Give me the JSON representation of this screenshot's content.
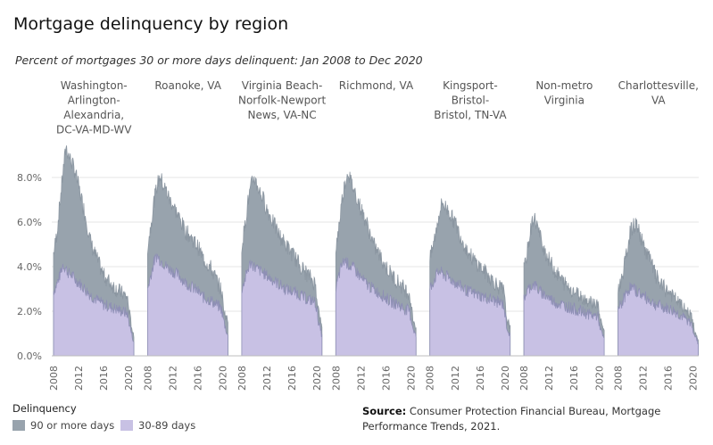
{
  "chart_data": {
    "type": "area",
    "title": "Mortgage delinquency by region",
    "subtitle": "Percent of mortgages 30 or more days delinquent: Jan 2008 to Dec 2020",
    "y_ticks": [
      "0.0%",
      "2.0%",
      "4.0%",
      "6.0%",
      "8.0%"
    ],
    "ylim": [
      0,
      9.6
    ],
    "x_ticks": [
      "2008",
      "2012",
      "2016",
      "2020"
    ],
    "xlim": [
      2008,
      2020.9
    ],
    "stacked": true,
    "series_colors": {
      "90 or more days": "#98a3ad",
      "30-89 days": "#c8c1e4"
    },
    "panels": [
      {
        "region": "Washington-Arlington-Alexandria, DC-VA-MD-WV",
        "t": [
          2008.0,
          2008.5,
          2009.0,
          2009.5,
          2010.0,
          2010.4,
          2011.0,
          2011.5,
          2012.0,
          2013.0,
          2014.0,
          2015.0,
          2016.0,
          2017.0,
          2018.0,
          2019.0,
          2019.8,
          2020.3,
          2020.9
        ],
        "early": [
          2.9,
          3.2,
          3.6,
          4.1,
          3.9,
          3.7,
          3.6,
          3.4,
          3.3,
          3.0,
          2.7,
          2.5,
          2.3,
          2.2,
          2.1,
          2.0,
          1.9,
          1.2,
          0.5
        ],
        "total": [
          4.6,
          5.4,
          6.8,
          8.2,
          9.4,
          9.0,
          8.6,
          8.2,
          7.6,
          6.4,
          5.0,
          4.3,
          3.6,
          3.3,
          3.0,
          2.8,
          2.6,
          1.6,
          0.7
        ]
      },
      {
        "region": "Roanoke, VA",
        "t": [
          2008.0,
          2008.5,
          2009.0,
          2009.5,
          2010.0,
          2010.4,
          2011.0,
          2011.5,
          2012.0,
          2013.0,
          2014.0,
          2015.0,
          2016.0,
          2017.0,
          2018.0,
          2019.0,
          2019.8,
          2020.3,
          2020.9
        ],
        "early": [
          3.0,
          3.6,
          4.2,
          4.5,
          4.3,
          4.2,
          4.0,
          3.9,
          3.8,
          3.6,
          3.3,
          3.1,
          2.9,
          2.6,
          2.5,
          2.3,
          2.1,
          1.4,
          0.8
        ],
        "total": [
          4.9,
          5.8,
          6.9,
          7.6,
          8.1,
          7.7,
          7.4,
          7.0,
          6.8,
          6.2,
          5.6,
          5.3,
          4.9,
          4.3,
          4.0,
          3.4,
          2.9,
          1.9,
          1.5
        ]
      },
      {
        "region": "Virginia Beach-Norfolk-Newport News, VA-NC",
        "t": [
          2008.0,
          2008.5,
          2009.0,
          2009.5,
          2010.0,
          2010.4,
          2011.0,
          2011.5,
          2012.0,
          2013.0,
          2014.0,
          2015.0,
          2016.0,
          2017.0,
          2018.0,
          2019.0,
          2019.8,
          2020.3,
          2020.9
        ],
        "early": [
          3.0,
          3.4,
          3.9,
          4.2,
          4.0,
          3.9,
          3.8,
          3.7,
          3.6,
          3.4,
          3.2,
          3.0,
          2.9,
          2.8,
          2.6,
          2.5,
          2.4,
          1.5,
          0.8
        ],
        "total": [
          4.9,
          5.8,
          6.9,
          7.6,
          8.0,
          7.7,
          7.3,
          7.0,
          6.6,
          6.0,
          5.4,
          5.0,
          4.6,
          4.2,
          3.8,
          3.5,
          3.2,
          2.0,
          1.1
        ]
      },
      {
        "region": "Richmond, VA",
        "t": [
          2008.0,
          2008.5,
          2009.0,
          2009.5,
          2010.0,
          2010.4,
          2011.0,
          2011.5,
          2012.0,
          2013.0,
          2014.0,
          2015.0,
          2016.0,
          2017.0,
          2018.0,
          2019.0,
          2019.8,
          2020.3,
          2020.9
        ],
        "early": [
          3.0,
          3.6,
          4.1,
          4.3,
          4.1,
          4.0,
          3.9,
          3.7,
          3.5,
          3.2,
          3.0,
          2.8,
          2.6,
          2.4,
          2.3,
          2.1,
          2.0,
          1.3,
          0.8
        ],
        "total": [
          4.8,
          5.8,
          7.0,
          7.8,
          8.3,
          7.8,
          7.4,
          7.0,
          6.6,
          5.9,
          5.0,
          4.5,
          4.0,
          3.6,
          3.3,
          3.0,
          2.8,
          1.7,
          1.2
        ]
      },
      {
        "region": "Kingsport-Bristol-Bristol, TN-VA",
        "t": [
          2008.0,
          2008.5,
          2009.0,
          2009.5,
          2010.0,
          2010.4,
          2011.0,
          2011.5,
          2012.0,
          2013.0,
          2014.0,
          2015.0,
          2016.0,
          2017.0,
          2018.0,
          2019.0,
          2019.8,
          2020.3,
          2020.9
        ],
        "early": [
          3.0,
          3.3,
          3.6,
          3.8,
          3.7,
          3.6,
          3.5,
          3.4,
          3.3,
          3.1,
          2.9,
          2.8,
          2.7,
          2.6,
          2.5,
          2.4,
          2.3,
          1.3,
          0.8
        ],
        "total": [
          4.3,
          4.9,
          5.6,
          6.4,
          6.9,
          6.7,
          6.5,
          6.2,
          6.0,
          5.3,
          4.7,
          4.3,
          4.0,
          3.7,
          3.4,
          3.1,
          2.9,
          1.6,
          1.3
        ]
      },
      {
        "region": "Non-metro Virginia",
        "t": [
          2008.0,
          2008.5,
          2009.0,
          2009.5,
          2010.0,
          2010.4,
          2011.0,
          2011.5,
          2012.0,
          2013.0,
          2014.0,
          2015.0,
          2016.0,
          2017.0,
          2018.0,
          2019.0,
          2019.8,
          2020.3,
          2020.9
        ],
        "early": [
          2.6,
          2.9,
          3.1,
          3.2,
          3.1,
          2.9,
          2.8,
          2.7,
          2.6,
          2.4,
          2.3,
          2.2,
          2.1,
          2.0,
          1.9,
          1.8,
          1.8,
          1.1,
          0.7
        ],
        "total": [
          3.8,
          4.6,
          5.5,
          6.2,
          6.0,
          5.5,
          5.0,
          4.6,
          4.3,
          3.8,
          3.4,
          3.1,
          2.9,
          2.7,
          2.5,
          2.4,
          2.3,
          1.5,
          1.1
        ]
      },
      {
        "region": "Charlottesville, VA",
        "t": [
          2008.0,
          2008.5,
          2009.0,
          2009.5,
          2010.0,
          2010.4,
          2011.0,
          2011.5,
          2012.0,
          2013.0,
          2014.0,
          2015.0,
          2016.0,
          2017.0,
          2018.0,
          2019.0,
          2019.8,
          2020.3,
          2020.9
        ],
        "early": [
          2.1,
          2.3,
          2.6,
          2.9,
          3.1,
          3.0,
          2.9,
          2.8,
          2.7,
          2.5,
          2.3,
          2.2,
          2.1,
          2.0,
          1.8,
          1.6,
          1.4,
          0.9,
          0.5
        ],
        "total": [
          2.9,
          3.4,
          4.0,
          4.8,
          5.6,
          5.8,
          5.9,
          5.4,
          5.0,
          4.4,
          3.6,
          3.1,
          2.9,
          2.6,
          2.3,
          2.0,
          1.8,
          1.0,
          0.6
        ]
      }
    ]
  },
  "legend": {
    "title": "Delinquency",
    "items": [
      {
        "label": "90 or more days",
        "color": "#98a3ad"
      },
      {
        "label": "30-89 days",
        "color": "#c8c1e4"
      }
    ]
  },
  "source": {
    "label": "Source:",
    "text": "Consumer Protection Financial Bureau, Mortgage Performance Trends, 2021."
  }
}
